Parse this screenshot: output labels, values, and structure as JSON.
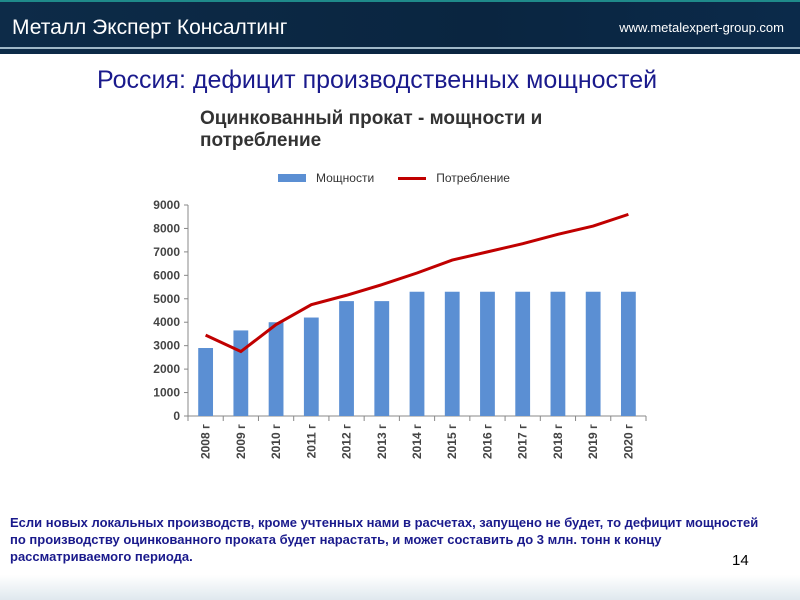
{
  "header": {
    "logo": "Металл Эксперт Консалтинг",
    "url": "www.metalexpert-group.com"
  },
  "slide": {
    "title": "Россия: дефицит производственных мощностей",
    "note": "Если новых локальных производств, кроме учтенных нами в расчетах, запущено не будет, то дефицит мощностей по производству оцинкованного проката будет нарастать, и может составить до 3 млн. тонн к концу рассматриваемого периода.",
    "page": "14"
  },
  "chart_data": {
    "type": "bar+line",
    "title": "Оцинкованный прокат - мощности и потребление",
    "categories": [
      "2008 г",
      "2009 г",
      "2010 г",
      "2011 г",
      "2012 г",
      "2013 г",
      "2014 г",
      "2015 г",
      "2016 г",
      "2017 г",
      "2018 г",
      "2019 г",
      "2020 г"
    ],
    "series": [
      {
        "name": "Мощности",
        "type": "bar",
        "color": "#5b8fd3",
        "values": [
          2900,
          3650,
          4000,
          4200,
          4900,
          4900,
          5300,
          5300,
          5300,
          5300,
          5300,
          5300,
          5300
        ]
      },
      {
        "name": "Потребление",
        "type": "line",
        "color": "#c00000",
        "values": [
          3450,
          2750,
          3900,
          4750,
          5150,
          5600,
          6100,
          6650,
          7000,
          7350,
          7750,
          8100,
          8600
        ]
      }
    ],
    "yticks": [
      0,
      1000,
      2000,
      3000,
      4000,
      5000,
      6000,
      7000,
      8000,
      9000
    ],
    "ylim": [
      0,
      9000
    ],
    "grid": false,
    "legend": "top"
  }
}
